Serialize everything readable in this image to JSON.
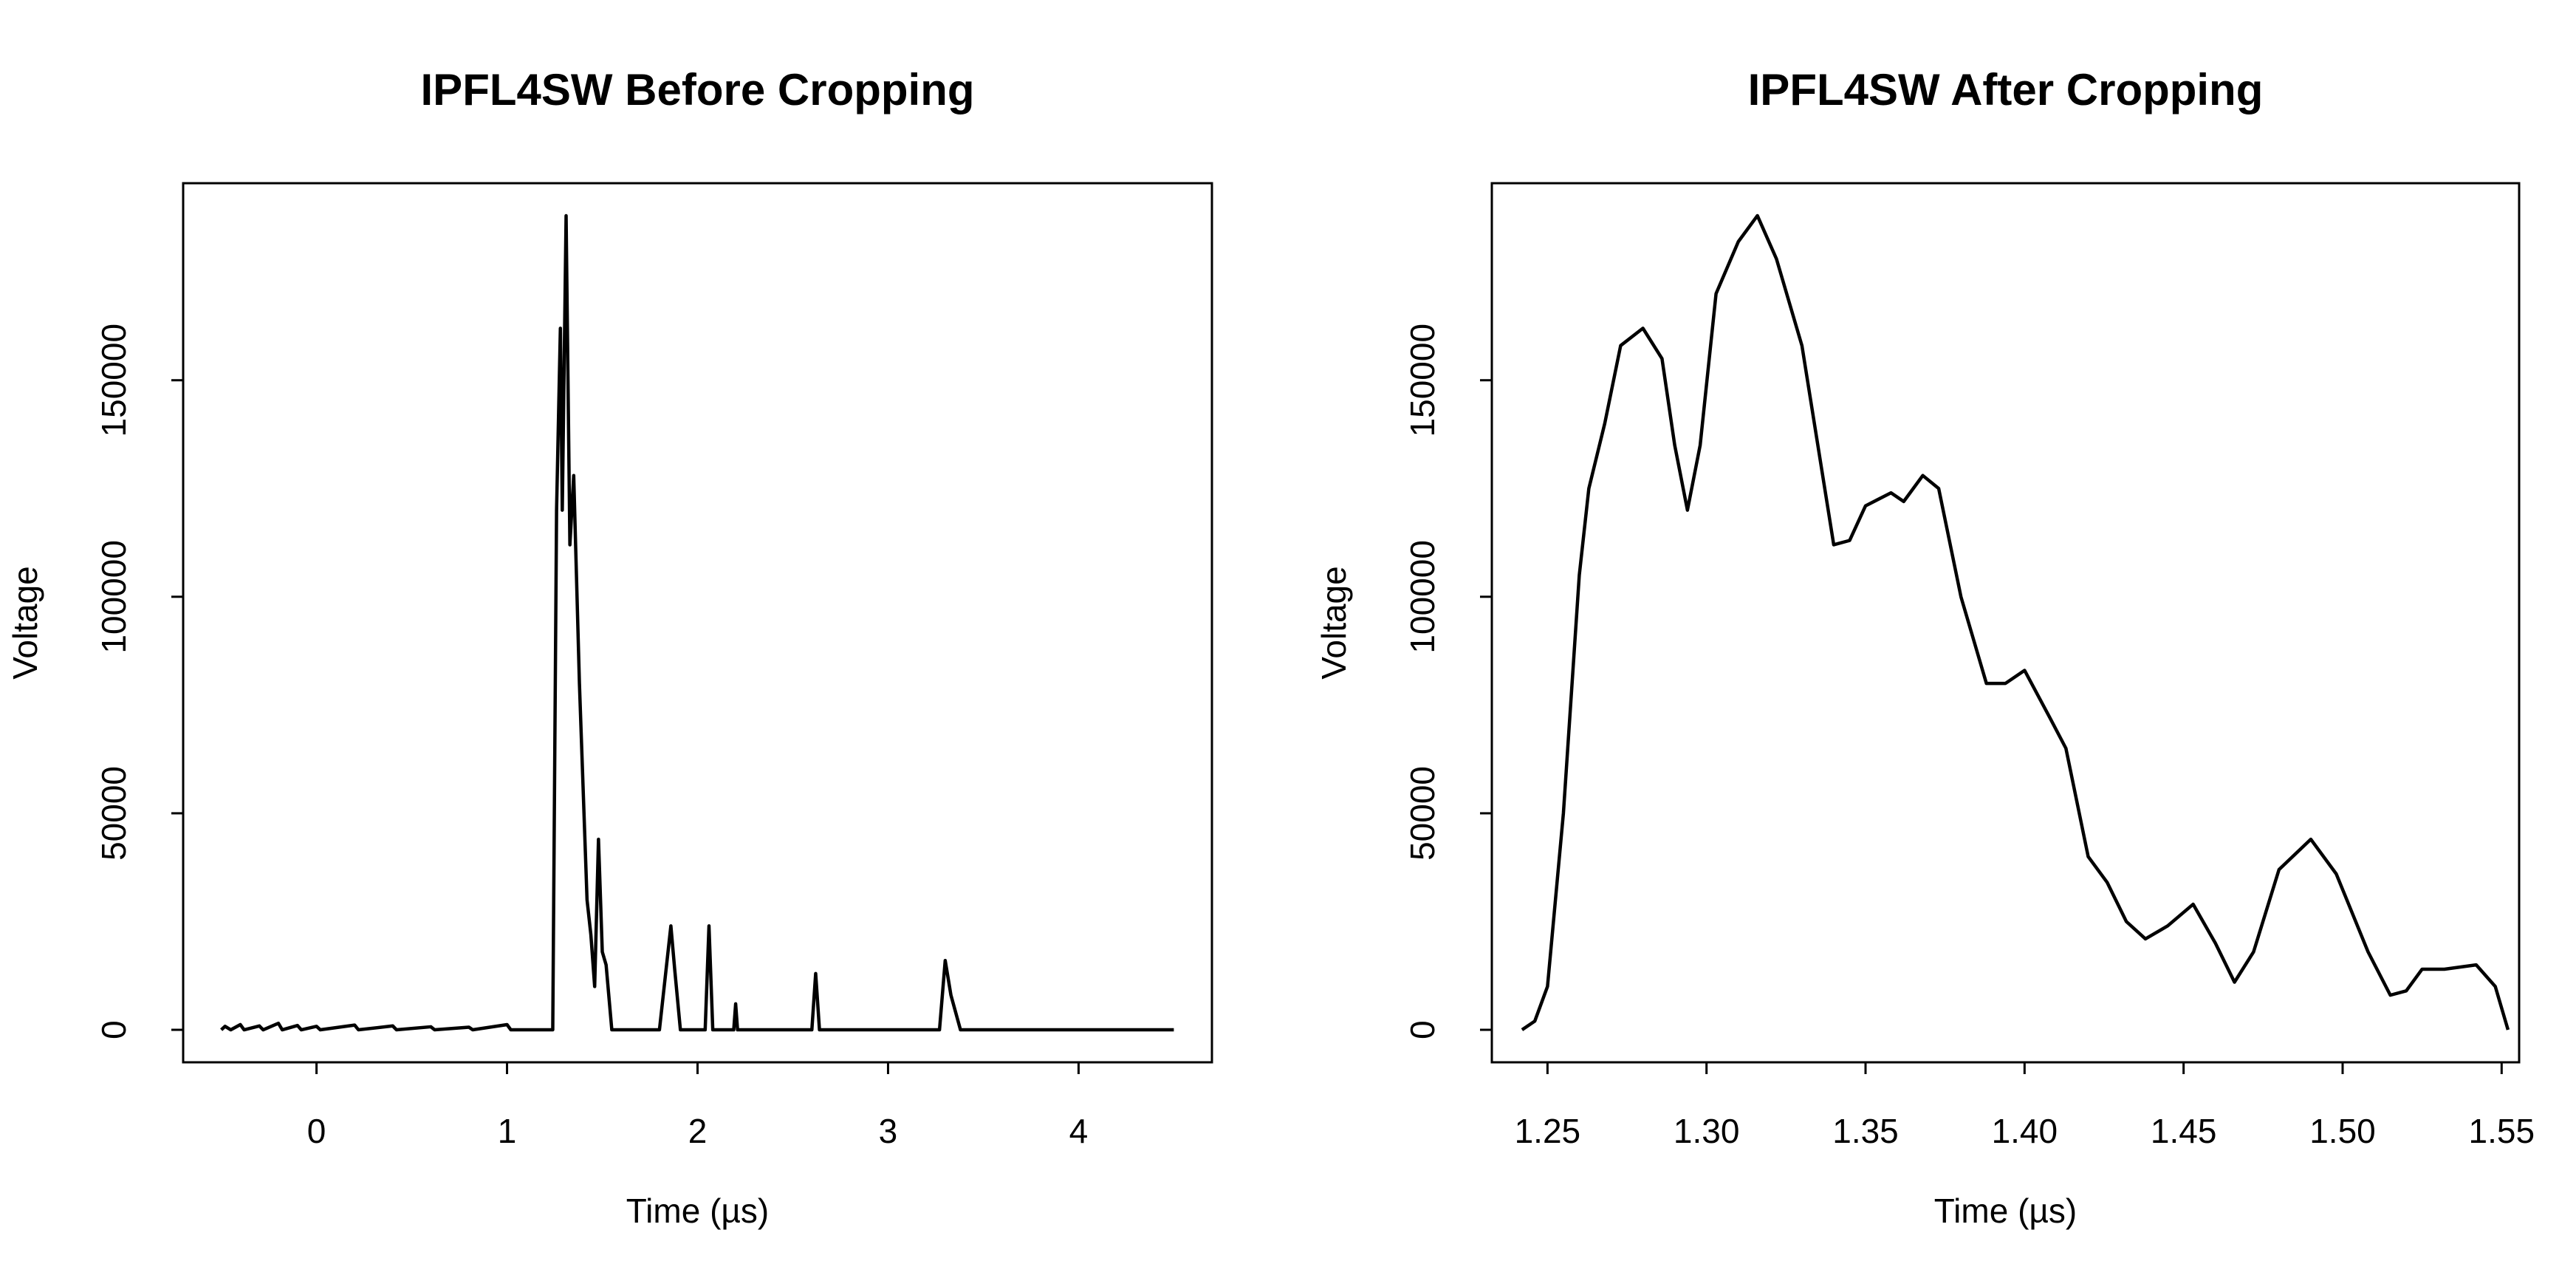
{
  "chart_data": [
    {
      "type": "line",
      "title": "IPFL4SW Before Cropping",
      "x_label": "Time (µs)",
      "y_label": "Voltage",
      "color": "#000000",
      "x": [
        -0.5,
        -0.48,
        -0.45,
        -0.4,
        -0.38,
        -0.3,
        -0.28,
        -0.2,
        -0.18,
        -0.1,
        -0.08,
        0.0,
        0.02,
        0.2,
        0.22,
        0.4,
        0.42,
        0.6,
        0.62,
        0.8,
        0.82,
        1.0,
        1.02,
        1.24,
        1.26,
        1.28,
        1.29,
        1.31,
        1.33,
        1.35,
        1.38,
        1.42,
        1.44,
        1.46,
        1.48,
        1.5,
        1.52,
        1.55,
        1.8,
        1.83,
        1.86,
        1.88,
        1.91,
        2.04,
        2.06,
        2.08,
        2.19,
        2.2,
        2.21,
        2.6,
        2.62,
        2.64,
        3.27,
        3.3,
        3.33,
        3.38,
        4.5
      ],
      "values": [
        0,
        800,
        0,
        1200,
        0,
        900,
        0,
        1500,
        0,
        1000,
        0,
        800,
        0,
        1100,
        0,
        900,
        0,
        700,
        0,
        600,
        0,
        1200,
        0,
        0,
        120000,
        162000,
        120000,
        188000,
        112000,
        128000,
        80000,
        30000,
        22000,
        10000,
        44000,
        18000,
        15000,
        0,
        0,
        12000,
        24000,
        14000,
        0,
        0,
        24000,
        0,
        0,
        6000,
        0,
        0,
        13000,
        0,
        0,
        16000,
        8000,
        0,
        0
      ],
      "xlim": [
        -0.7,
        4.7
      ],
      "ylim": [
        -7500,
        195500
      ],
      "xticks": [
        0,
        1,
        2,
        3,
        4
      ],
      "yticks": [
        0,
        50000,
        100000,
        150000
      ]
    },
    {
      "type": "line",
      "title": "IPFL4SW After Cropping",
      "x_label": "Time (µs)",
      "y_label": "Voltage",
      "color": "#000000",
      "x": [
        1.242,
        1.246,
        1.25,
        1.255,
        1.26,
        1.263,
        1.268,
        1.273,
        1.28,
        1.286,
        1.29,
        1.294,
        1.298,
        1.303,
        1.31,
        1.316,
        1.322,
        1.33,
        1.335,
        1.34,
        1.345,
        1.35,
        1.358,
        1.362,
        1.368,
        1.373,
        1.38,
        1.388,
        1.394,
        1.4,
        1.408,
        1.413,
        1.42,
        1.426,
        1.432,
        1.438,
        1.445,
        1.453,
        1.46,
        1.466,
        1.472,
        1.48,
        1.49,
        1.498,
        1.508,
        1.515,
        1.52,
        1.525,
        1.532,
        1.542,
        1.548,
        1.552
      ],
      "values": [
        0,
        2000,
        10000,
        50000,
        105000,
        125000,
        140000,
        158000,
        162000,
        155000,
        135000,
        120000,
        135000,
        170000,
        182000,
        188000,
        178000,
        158000,
        135000,
        112000,
        113000,
        121000,
        124000,
        122000,
        128000,
        125000,
        100000,
        80000,
        80000,
        83000,
        72000,
        65000,
        40000,
        34000,
        25000,
        21000,
        24000,
        29000,
        20000,
        11000,
        18000,
        37000,
        44000,
        36000,
        18000,
        8000,
        9000,
        14000,
        14000,
        15000,
        10000,
        0
      ],
      "xlim": [
        1.2325,
        1.5555
      ],
      "ylim": [
        -7500,
        195500
      ],
      "xticks": [
        1.25,
        {
          "value": 1.3,
          "label": "1.30"
        },
        1.35,
        {
          "value": 1.4,
          "label": "1.40"
        },
        1.45,
        {
          "value": 1.5,
          "label": "1.50"
        },
        1.55
      ],
      "yticks": [
        0,
        50000,
        100000,
        150000
      ]
    }
  ]
}
